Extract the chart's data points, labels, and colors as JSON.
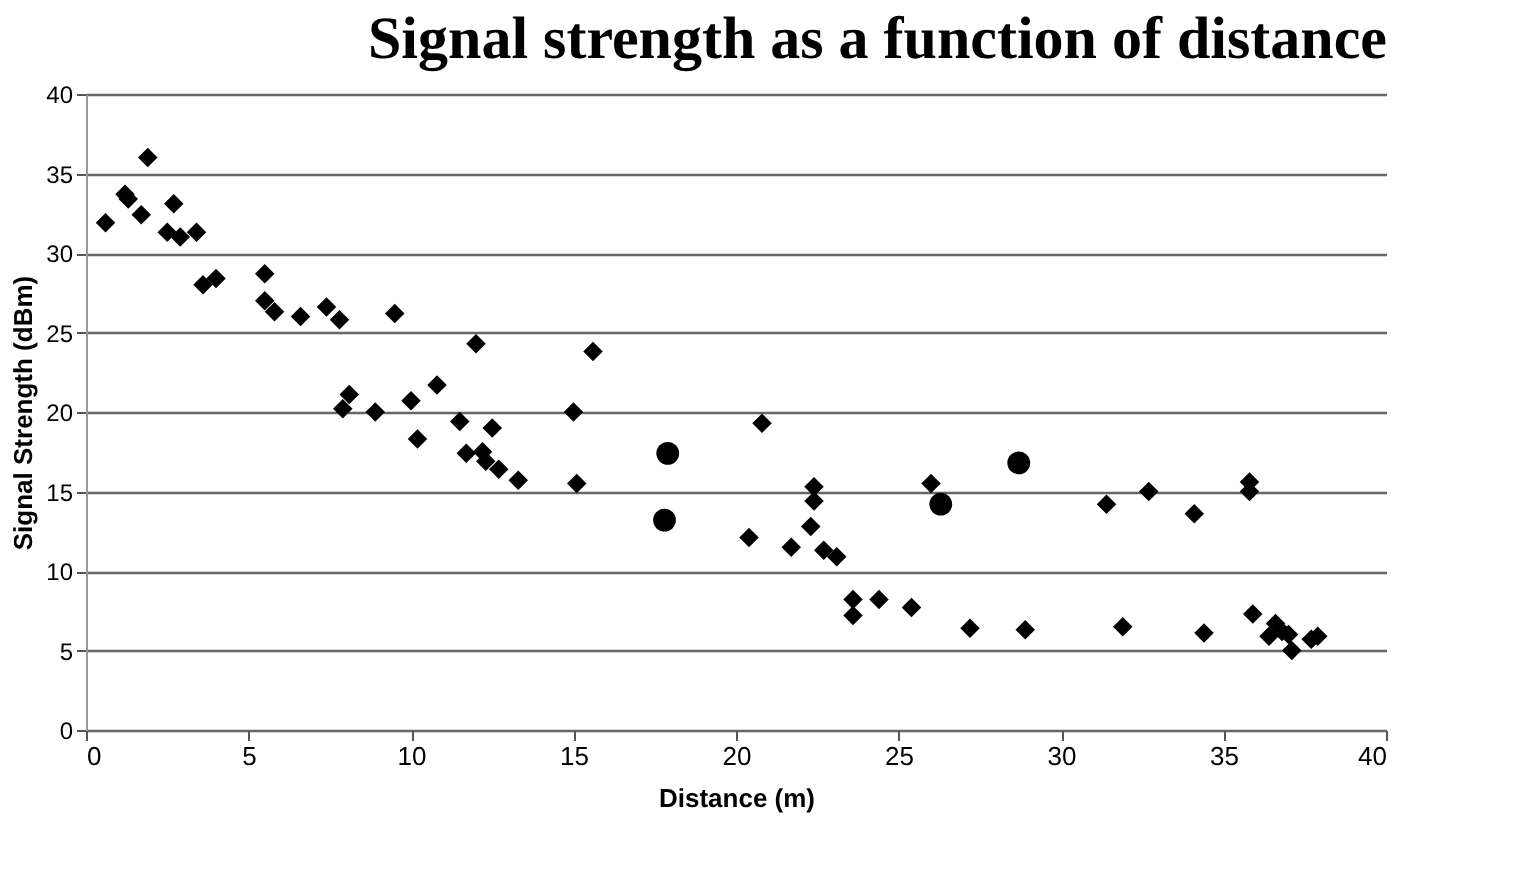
{
  "chart_data": {
    "type": "scatter",
    "title": "Signal strength as a function of distance",
    "xlabel": "Distance (m)",
    "ylabel": "Signal Strength (dBm)",
    "xlim": [
      0,
      40
    ],
    "xticks": [
      0,
      5,
      10,
      15,
      20,
      25,
      30,
      35,
      40
    ],
    "ylim": [
      0,
      40
    ],
    "yticks": [
      0,
      5,
      10,
      15,
      20,
      25,
      30,
      35,
      40
    ],
    "grid": "y",
    "series": [
      {
        "color": "#000000",
        "marker": "diamond",
        "x": [
          0.6,
          1.2,
          1.3,
          1.9,
          1.7,
          2.7,
          2.5,
          2.9,
          3.4,
          3.6,
          4.0,
          5.5,
          5.5,
          5.8,
          6.6,
          7.4,
          7.8,
          9.5,
          8.1,
          7.9,
          8.9,
          10.0,
          10.2,
          10.8,
          12.0,
          11.5,
          11.7,
          12.2,
          12.5,
          12.3,
          12.7,
          13.3,
          15.0,
          15.1,
          15.6,
          20.8,
          20.4,
          21.7,
          22.4,
          22.4,
          22.3,
          22.7,
          23.1,
          23.6,
          23.6,
          24.4,
          25.4,
          26.0,
          27.2,
          28.9,
          31.4,
          31.9,
          32.7,
          34.1,
          34.4,
          35.8,
          35.8,
          35.9,
          36.4,
          36.6,
          36.8,
          37.1,
          37.0,
          37.7,
          37.9
        ],
        "values": [
          31.9,
          33.7,
          33.4,
          36.0,
          32.4,
          33.1,
          31.3,
          31.0,
          31.3,
          28.0,
          28.4,
          28.7,
          27.0,
          26.3,
          26.0,
          26.6,
          25.8,
          26.2,
          21.1,
          20.2,
          20.0,
          20.7,
          18.3,
          21.7,
          24.3,
          19.4,
          17.4,
          17.5,
          19.0,
          16.9,
          16.4,
          15.7,
          20.0,
          15.5,
          23.8,
          19.3,
          12.1,
          11.5,
          15.3,
          14.4,
          12.8,
          11.3,
          10.9,
          8.2,
          7.2,
          8.2,
          7.7,
          15.5,
          6.4,
          6.3,
          14.2,
          6.5,
          15.0,
          13.6,
          6.1,
          15.6,
          15.0,
          7.3,
          5.9,
          6.7,
          6.2,
          5.0,
          6.0,
          5.7,
          5.9
        ]
      },
      {
        "color": "#000000",
        "marker": "circle",
        "x": [
          17.9,
          17.8,
          28.7,
          26.3
        ],
        "values": [
          17.4,
          13.2,
          16.8,
          14.2
        ]
      }
    ]
  }
}
